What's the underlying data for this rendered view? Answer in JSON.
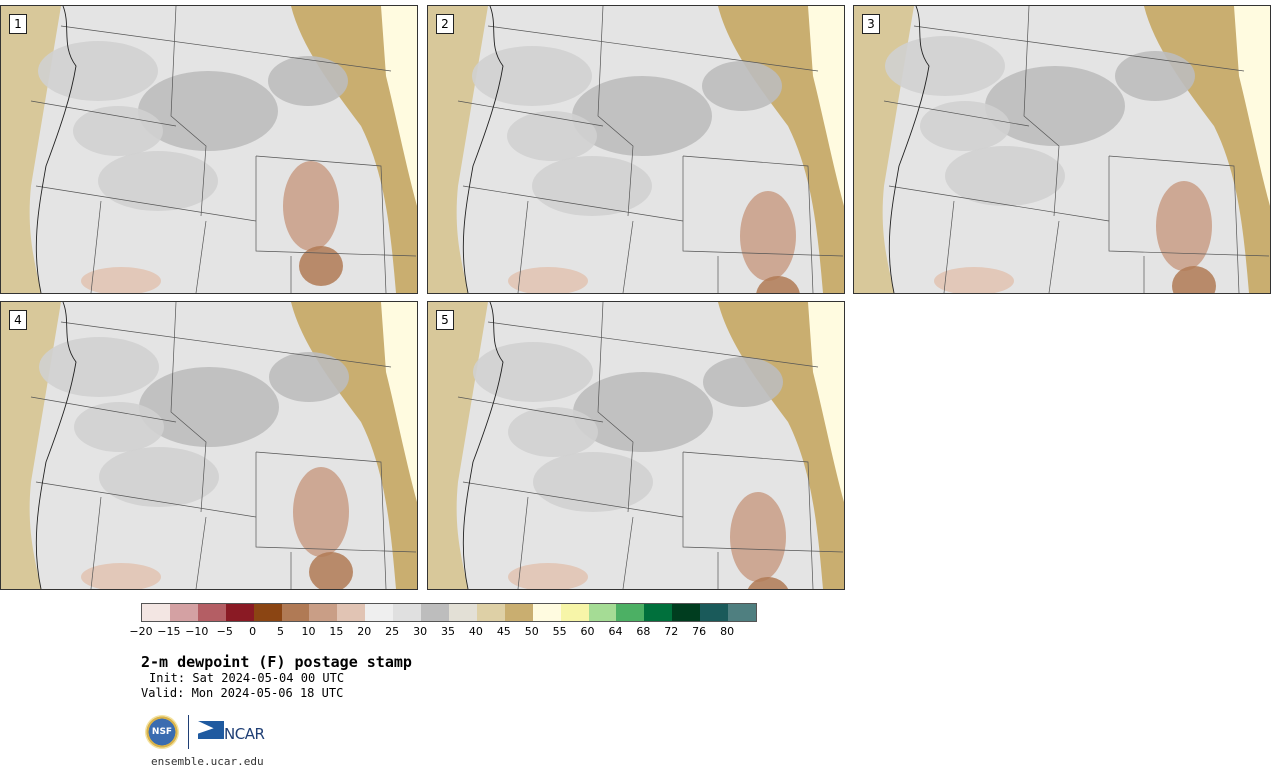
{
  "panels": [
    {
      "label": "1",
      "variant": 1
    },
    {
      "label": "2",
      "variant": 2
    },
    {
      "label": "3",
      "variant": 3
    },
    {
      "label": "4",
      "variant": 4
    },
    {
      "label": "5",
      "variant": 5
    }
  ],
  "colorbar": {
    "colors": [
      "#f3e6e3",
      "#d4a1a3",
      "#b45e64",
      "#8a1a24",
      "#8b4513",
      "#b07a55",
      "#c99e86",
      "#e1c4b4",
      "#efefef",
      "#e0e0e0",
      "#bdbdbd",
      "#e3e0d6",
      "#ded0a6",
      "#c9ae70",
      "#fffbe0",
      "#f7f5a8",
      "#a5dc95",
      "#4cb064",
      "#00703c",
      "#003d1f",
      "#1a5a5a",
      "#4f7f80"
    ],
    "ticks": [
      "−20",
      "−15",
      "−10",
      "−5",
      "0",
      "5",
      "10",
      "15",
      "20",
      "25",
      "30",
      "35",
      "40",
      "45",
      "50",
      "55",
      "60",
      "64",
      "68",
      "72",
      "76",
      "80"
    ]
  },
  "title": "2-m dewpoint (F) postage stamp",
  "init": "Init: Sat 2024-05-04 00 UTC",
  "valid": "Valid: Mon 2024-05-06 18 UTC",
  "logos": {
    "nsf_text": "NSF",
    "ncar_text": "NCAR"
  },
  "website": "ensemble.ucar.edu"
}
